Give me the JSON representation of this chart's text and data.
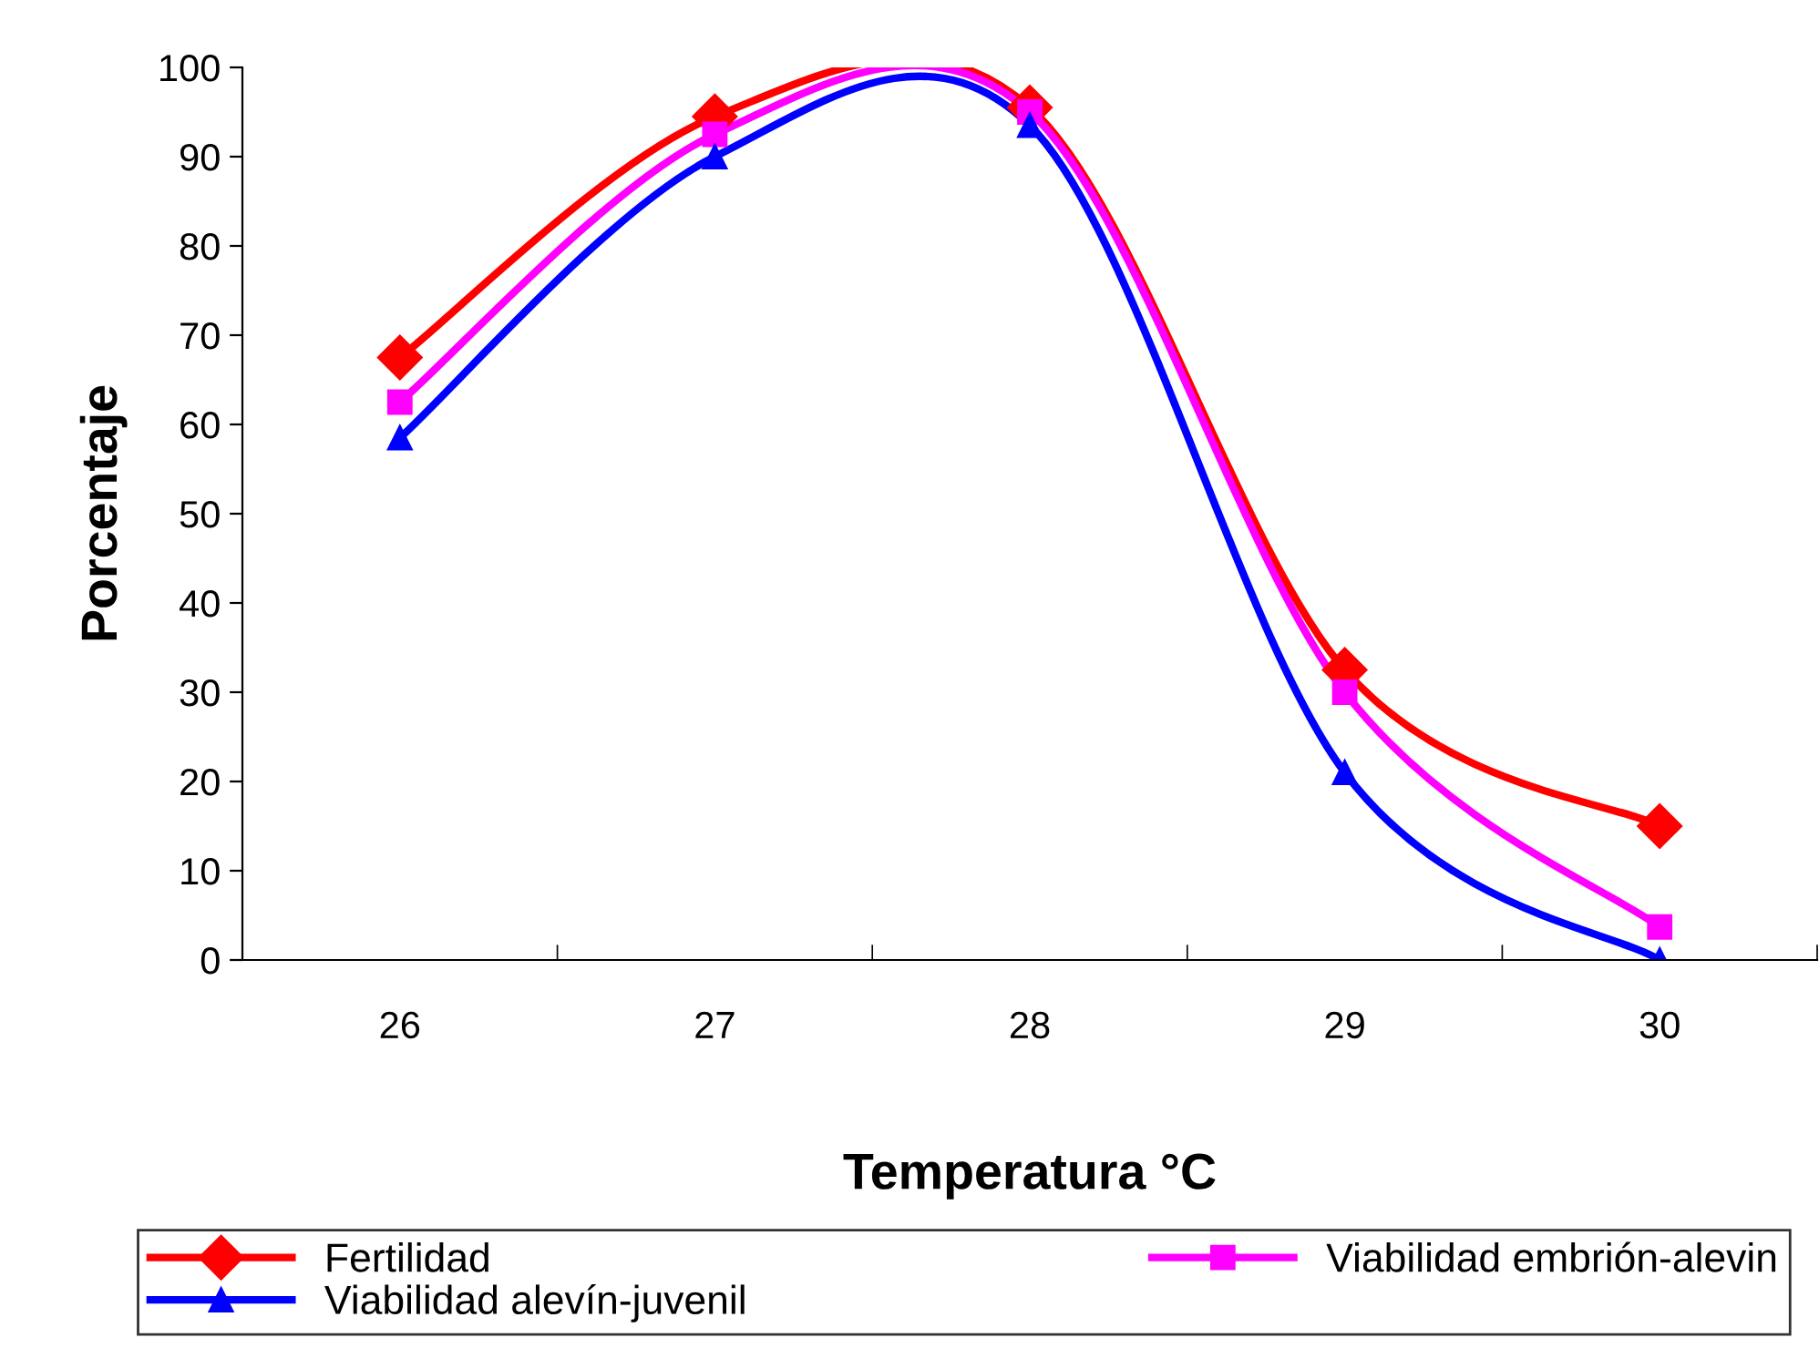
{
  "chart_data": {
    "type": "line",
    "xlabel": "Temperatura °C",
    "ylabel": "Porcentaje",
    "categories": [
      "26",
      "27",
      "28",
      "29",
      "30"
    ],
    "series": [
      {
        "name": "Fertilidad",
        "color": "#ff0000",
        "marker": "diamond",
        "values": [
          67.5,
          94.5,
          95.5,
          32.5,
          15
        ]
      },
      {
        "name": "Viabilidad embrión-alevin",
        "color": "#ff00ff",
        "marker": "square",
        "values": [
          62.5,
          92.5,
          95,
          30,
          3.7
        ]
      },
      {
        "name": "Viabilidad alevín-juvenil",
        "color": "#0000ff",
        "marker": "triangle",
        "values": [
          58.5,
          90,
          93.5,
          21,
          0
        ]
      }
    ],
    "ylim": [
      0,
      100
    ],
    "yticks": [
      0,
      10,
      20,
      30,
      40,
      50,
      60,
      70,
      80,
      90,
      100
    ],
    "grid": false,
    "legend": "bottom",
    "line_style": "solid"
  }
}
